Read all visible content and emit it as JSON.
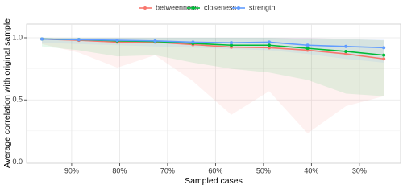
{
  "chart_data": {
    "type": "line",
    "x_label": "Sampled cases",
    "y_label": "Average correlation with original sample",
    "x": [
      96.2,
      88.5,
      80.5,
      72.6,
      64.7,
      56.7,
      48.8,
      40.8,
      32.8,
      24.9
    ],
    "xlim": [
      99.4,
      21.4
    ],
    "xticks": [
      {
        "value": 90,
        "label": "90%"
      },
      {
        "value": 80,
        "label": "80%"
      },
      {
        "value": 70,
        "label": "70%"
      },
      {
        "value": 60,
        "label": "60%"
      },
      {
        "value": 50,
        "label": "50%"
      },
      {
        "value": 40,
        "label": "40%"
      },
      {
        "value": 30,
        "label": "30%"
      }
    ],
    "ylim": [
      -0.01,
      1.11
    ],
    "yticks": [
      {
        "value": 0,
        "label": "0.0"
      },
      {
        "value": 0.5,
        "label": "0.5"
      },
      {
        "value": 1,
        "label": "1.0"
      }
    ],
    "grid": true,
    "legend": "top",
    "series": [
      {
        "name": "betweenness",
        "color": "#F8766D",
        "values": [
          0.99,
          0.98,
          0.965,
          0.965,
          0.945,
          0.925,
          0.92,
          0.9,
          0.87,
          0.83
        ],
        "lower": [
          0.95,
          0.88,
          0.76,
          0.86,
          0.65,
          0.38,
          0.57,
          0.23,
          0.45,
          0.53
        ],
        "upper": [
          1,
          1,
          1,
          1,
          1,
          1,
          1,
          1,
          0.99,
          0.98
        ]
      },
      {
        "name": "closeness",
        "color": "#00BA38",
        "values": [
          0.99,
          0.985,
          0.975,
          0.97,
          0.955,
          0.94,
          0.94,
          0.915,
          0.89,
          0.86
        ],
        "lower": [
          0.93,
          0.9,
          0.85,
          0.86,
          0.8,
          0.75,
          0.72,
          0.66,
          0.55,
          0.53
        ],
        "upper": [
          1,
          1,
          1,
          1,
          1,
          1,
          1,
          0.99,
          0.99,
          0.98
        ]
      },
      {
        "name": "strength",
        "color": "#619CFF",
        "values": [
          0.99,
          0.985,
          0.98,
          0.975,
          0.965,
          0.96,
          0.965,
          0.94,
          0.93,
          0.92
        ],
        "lower": [
          0.96,
          0.95,
          0.94,
          0.93,
          0.92,
          0.91,
          0.9,
          0.87,
          0.83,
          0.8
        ],
        "upper": [
          1,
          1,
          1,
          1,
          1,
          1,
          1,
          1,
          0.99,
          0.99
        ]
      }
    ]
  }
}
